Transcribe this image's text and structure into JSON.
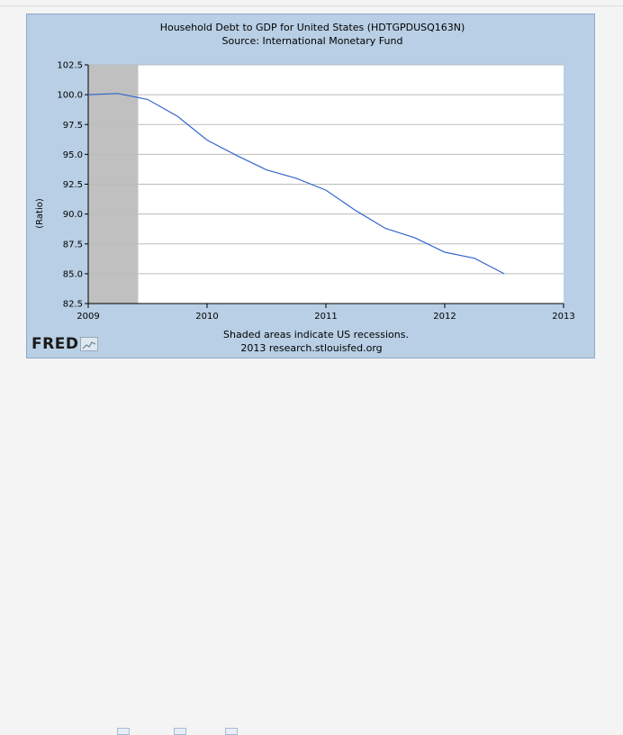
{
  "chart_data": {
    "type": "line",
    "title": "Household Debt to GDP for United States (HDTGPDUSQ163N)",
    "subtitle": "Source: International Monetary Fund",
    "ylabel": "(Ratio)",
    "xlabel": "",
    "xlim": [
      2009.0,
      2013.0
    ],
    "ylim": [
      82.5,
      102.5
    ],
    "x_ticks": [
      "2009",
      "2010",
      "2011",
      "2012",
      "2013"
    ],
    "x_tick_values": [
      2009,
      2010,
      2011,
      2012,
      2013
    ],
    "y_ticks": [
      "82.5",
      "85.0",
      "87.5",
      "90.0",
      "92.5",
      "95.0",
      "97.5",
      "100.0",
      "102.5"
    ],
    "y_tick_values": [
      82.5,
      85.0,
      87.5,
      90.0,
      92.5,
      95.0,
      97.5,
      100.0,
      102.5
    ],
    "grid": "horizontal",
    "recession_band": [
      2009.0,
      2009.42
    ],
    "series": [
      {
        "x": [
          2009.0,
          2009.25,
          2009.5,
          2009.75,
          2010.0,
          2010.25,
          2010.5,
          2010.75,
          2011.0,
          2011.25,
          2011.5,
          2011.75,
          2012.0,
          2012.25,
          2012.5
        ],
        "values": [
          100.0,
          100.1,
          99.6,
          98.2,
          96.2,
          94.9,
          93.7,
          93.0,
          92.0,
          90.3,
          88.8,
          88.0,
          86.8,
          86.3,
          85.0
        ],
        "color": "#3366cc"
      }
    ]
  },
  "footer": {
    "note": "Shaded areas indicate US recessions.",
    "source_line": "2013 research.stlouisfed.org"
  },
  "logo": {
    "text": "FRED"
  },
  "colors": {
    "frame": "#b8cfe5",
    "plot_bg": "#ffffff",
    "recession": "#c0c0c0",
    "line": "#3366cc",
    "grid": "#bbbbbb"
  }
}
